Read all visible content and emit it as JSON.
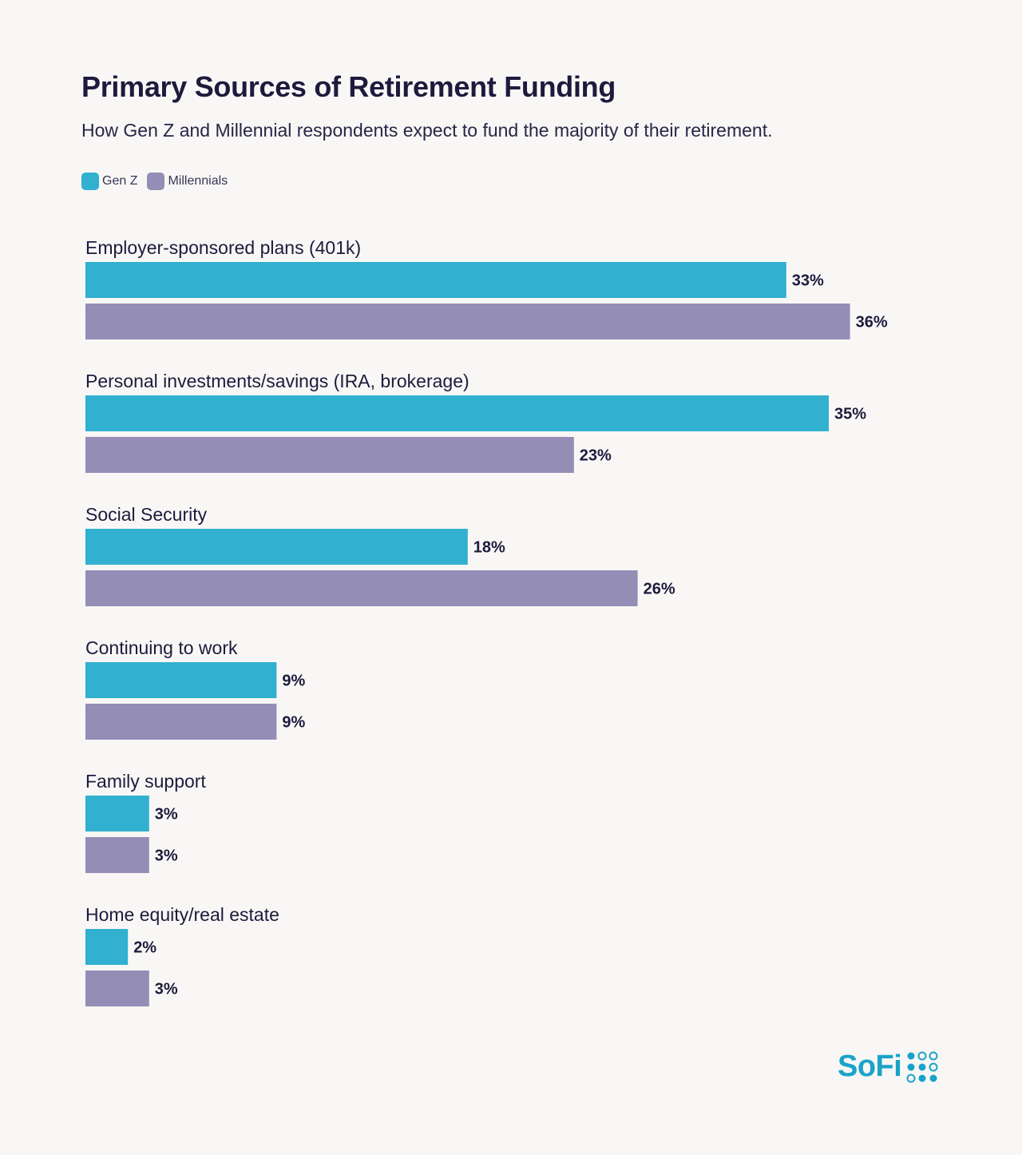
{
  "header": {
    "title": "Primary Sources of Retirement Funding",
    "subtitle": "How Gen Z and Millennial respondents expect to fund the majority of their retirement."
  },
  "legend": [
    {
      "label": "Gen Z",
      "color": "#31b0d0"
    },
    {
      "label": "Millennials",
      "color": "#948db6"
    }
  ],
  "chart_data": {
    "type": "bar",
    "orientation": "horizontal",
    "categories": [
      "Employer-sponsored plans (401k)",
      "Personal investments/savings (IRA, brokerage)",
      "Social Security",
      "Continuing to work",
      "Family support",
      "Home equity/real estate"
    ],
    "series": [
      {
        "name": "Gen Z",
        "color": "#31b0d0",
        "values": [
          33,
          35,
          18,
          9,
          3,
          2
        ]
      },
      {
        "name": "Millennials",
        "color": "#948db6",
        "values": [
          36,
          23,
          26,
          9,
          3,
          3
        ]
      }
    ],
    "value_suffix": "%",
    "xlim": [
      0,
      40
    ],
    "grid": false,
    "legend_position": "top-left"
  },
  "brand": {
    "logo_text": "SoFi",
    "logo_icon": "sofi-dots-icon"
  }
}
